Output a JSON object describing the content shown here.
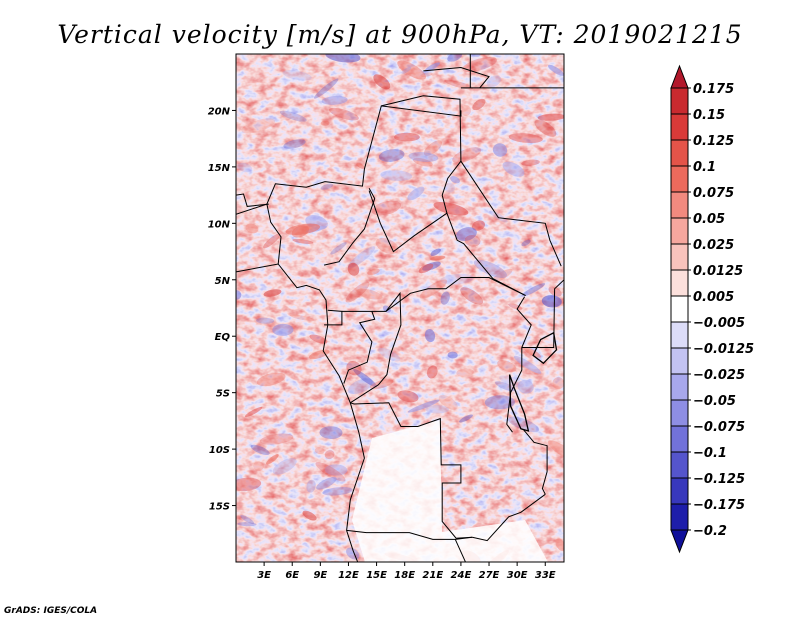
{
  "title": "Vertical velocity [m/s] at 900hPa, VT: 2019021215",
  "credit": "GrADS: IGES/COLA",
  "chart_data": {
    "type": "heatmap",
    "title": "Vertical velocity [m/s] at 900hPa, VT: 2019021215",
    "variable": "vertical velocity",
    "units": "m/s",
    "level": "900hPa",
    "valid_time": "2019021215",
    "x_range": [
      0,
      35
    ],
    "y_range": [
      -20,
      25
    ],
    "x_ticks": [
      3,
      6,
      9,
      12,
      15,
      18,
      21,
      24,
      27,
      30,
      33
    ],
    "x_tick_labels": [
      "3E",
      "6E",
      "9E",
      "12E",
      "15E",
      "18E",
      "21E",
      "24E",
      "27E",
      "30E",
      "33E"
    ],
    "y_ticks": [
      20,
      15,
      10,
      5,
      0,
      -5,
      -10,
      -15
    ],
    "y_tick_labels": [
      "20N",
      "15N",
      "10N",
      "5N",
      "EQ",
      "5S",
      "10S",
      "15S"
    ],
    "colorbar": {
      "levels": [
        0.175,
        0.15,
        0.125,
        0.1,
        0.075,
        0.05,
        0.025,
        0.0125,
        0.005,
        -0.005,
        -0.0125,
        -0.025,
        -0.05,
        -0.075,
        -0.1,
        -0.125,
        -0.175,
        -0.2
      ],
      "labels": [
        "0.175",
        "0.15",
        "0.125",
        "0.1",
        "0.075",
        "0.05",
        "0.025",
        "0.0125",
        "0.005",
        "−0.005",
        "−0.0125",
        "−0.025",
        "−0.05",
        "−0.075",
        "−0.1",
        "−0.125",
        "−0.175",
        "−0.2"
      ],
      "colors": [
        "#b2182b",
        "#c92a2f",
        "#d93a38",
        "#e45449",
        "#ec6a5c",
        "#f28a7f",
        "#f6a79e",
        "#f9c3bc",
        "#fce0dc",
        "#ffffff",
        "#dcdcf8",
        "#c3c3f2",
        "#a8a8ec",
        "#8e8ee4",
        "#7272da",
        "#5555cc",
        "#3838bc",
        "#1e1eaa",
        "#10109a"
      ]
    }
  }
}
